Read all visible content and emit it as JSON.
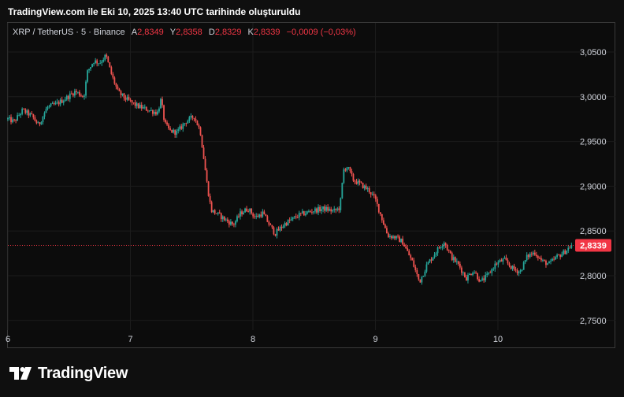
{
  "header": {
    "title": "TradingView.com ile Eki 10, 2025 13:40 UTC tarihinde oluşturuldu"
  },
  "legend": {
    "symbol": "XRP / TetherUS · 5 · Binance",
    "open_label": "A",
    "open_value": "2,8349",
    "high_label": "Y",
    "high_value": "2,8358",
    "low_label": "D",
    "low_value": "2,8329",
    "close_label": "K",
    "close_value": "2,8339",
    "change": "−0,0009 (−0,03%)"
  },
  "footer": {
    "brand": "TradingView"
  },
  "colors": {
    "up": "#26a69a",
    "down": "#ef5350",
    "price_badge": "#f23645",
    "grid": "#1c1c1c",
    "axis_text": "#d1d4dc"
  },
  "chart_data": {
    "type": "candlestick",
    "title": "XRP / TetherUS · 5 · Binance",
    "xlabel": "",
    "ylabel": "",
    "x_ticks": [
      "6",
      "7",
      "8",
      "9",
      "10"
    ],
    "y_ticks": [
      "3,0500",
      "3,0000",
      "2,9500",
      "2,9000",
      "2,8500",
      "2,8000",
      "2,7500"
    ],
    "ylim": [
      2.735,
      3.075
    ],
    "x_range_days": [
      6.0,
      10.6
    ],
    "grid": true,
    "last_price": 2.8339,
    "last_price_label": "2,8339",
    "price_path": [
      [
        6.0,
        2.975
      ],
      [
        6.05,
        2.972
      ],
      [
        6.12,
        2.985
      ],
      [
        6.2,
        2.978
      ],
      [
        6.25,
        2.968
      ],
      [
        6.32,
        2.988
      ],
      [
        6.4,
        2.992
      ],
      [
        6.48,
        2.999
      ],
      [
        6.55,
        3.006
      ],
      [
        6.62,
        3.0
      ],
      [
        6.65,
        3.028
      ],
      [
        6.7,
        3.04
      ],
      [
        6.75,
        3.038
      ],
      [
        6.8,
        3.046
      ],
      [
        6.85,
        3.023
      ],
      [
        6.9,
        3.005
      ],
      [
        6.96,
        2.998
      ],
      [
        7.05,
        2.99
      ],
      [
        7.15,
        2.985
      ],
      [
        7.22,
        2.982
      ],
      [
        7.25,
        2.997
      ],
      [
        7.28,
        2.97
      ],
      [
        7.32,
        2.962
      ],
      [
        7.38,
        2.96
      ],
      [
        7.45,
        2.972
      ],
      [
        7.52,
        2.978
      ],
      [
        7.57,
        2.962
      ],
      [
        7.6,
        2.93
      ],
      [
        7.63,
        2.898
      ],
      [
        7.66,
        2.873
      ],
      [
        7.72,
        2.868
      ],
      [
        7.78,
        2.862
      ],
      [
        7.84,
        2.857
      ],
      [
        7.9,
        2.87
      ],
      [
        7.96,
        2.875
      ],
      [
        8.02,
        2.865
      ],
      [
        8.08,
        2.87
      ],
      [
        8.13,
        2.858
      ],
      [
        8.18,
        2.847
      ],
      [
        8.26,
        2.858
      ],
      [
        8.38,
        2.868
      ],
      [
        8.5,
        2.873
      ],
      [
        8.58,
        2.875
      ],
      [
        8.66,
        2.872
      ],
      [
        8.71,
        2.876
      ],
      [
        8.74,
        2.918
      ],
      [
        8.77,
        2.922
      ],
      [
        8.82,
        2.907
      ],
      [
        8.88,
        2.902
      ],
      [
        8.95,
        2.895
      ],
      [
        9.0,
        2.885
      ],
      [
        9.05,
        2.865
      ],
      [
        9.1,
        2.845
      ],
      [
        9.16,
        2.843
      ],
      [
        9.22,
        2.838
      ],
      [
        9.3,
        2.816
      ],
      [
        9.36,
        2.793
      ],
      [
        9.42,
        2.812
      ],
      [
        9.5,
        2.828
      ],
      [
        9.56,
        2.838
      ],
      [
        9.62,
        2.821
      ],
      [
        9.68,
        2.812
      ],
      [
        9.74,
        2.797
      ],
      [
        9.8,
        2.806
      ],
      [
        9.86,
        2.793
      ],
      [
        9.92,
        2.801
      ],
      [
        9.98,
        2.813
      ],
      [
        10.05,
        2.818
      ],
      [
        10.12,
        2.808
      ],
      [
        10.18,
        2.804
      ],
      [
        10.24,
        2.822
      ],
      [
        10.3,
        2.826
      ],
      [
        10.36,
        2.816
      ],
      [
        10.42,
        2.813
      ],
      [
        10.48,
        2.821
      ],
      [
        10.54,
        2.826
      ],
      [
        10.6,
        2.834
      ]
    ]
  }
}
